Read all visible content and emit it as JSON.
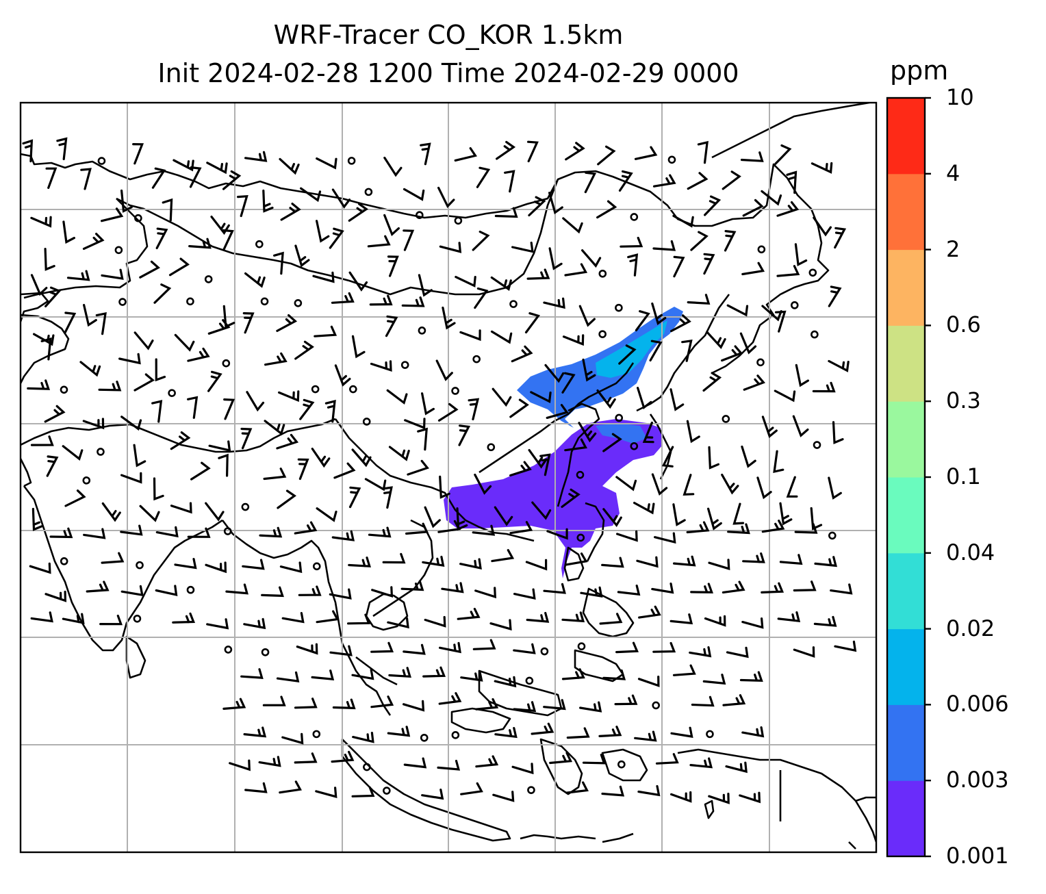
{
  "title": {
    "line1": "WRF-Tracer CO_KOR 1.5km",
    "line2": "Init 2024-02-28 1200 Time 2024-02-29 0000"
  },
  "colorbar": {
    "unit": "ppm",
    "levels": [
      "0.001",
      "0.003",
      "0.006",
      "0.02",
      "0.04",
      "0.1",
      "0.3",
      "0.6",
      "2",
      "4",
      "10"
    ],
    "colors": [
      "#6a2cfa",
      "#3373f2",
      "#04b3ec",
      "#32ded6",
      "#6afbbe",
      "#9af89e",
      "#cde284",
      "#fdb461",
      "#ff7139",
      "#fe2a17"
    ]
  },
  "map": {
    "gridlines": true,
    "features": [
      "coastlines",
      "country borders",
      "wind barbs",
      "CO tracer concentration"
    ]
  },
  "colors": {
    "grid": "#b0b0b0",
    "outline": "#000000",
    "tracer_low": "#6a2cfa",
    "tracer_mid": "#3373f2",
    "tracer_high": "#04b3ec"
  }
}
